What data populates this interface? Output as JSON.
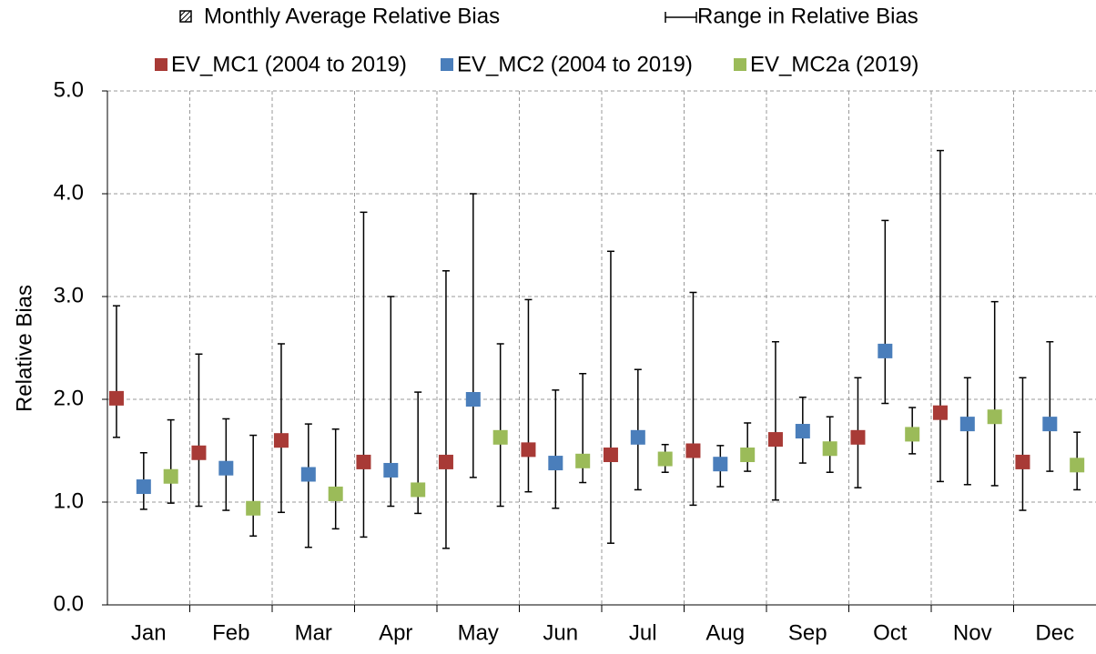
{
  "chart_data": {
    "type": "range_scatter",
    "y_label": "Relative Bias",
    "legend_notes": [
      "Monthly Average Relative Bias",
      "Range in Relative Bias"
    ],
    "categories": [
      "Jan",
      "Feb",
      "Mar",
      "Apr",
      "May",
      "Jun",
      "Jul",
      "Aug",
      "Sep",
      "Oct",
      "Nov",
      "Dec"
    ],
    "ylim": [
      0,
      5
    ],
    "yticks": [
      {
        "value": 0,
        "label": "0.0"
      },
      {
        "value": 1,
        "label": "1.0"
      },
      {
        "value": 2,
        "label": "2.0"
      },
      {
        "value": 3,
        "label": "3.0"
      },
      {
        "value": 4,
        "label": "4.0"
      },
      {
        "value": 5,
        "label": "5.0"
      }
    ],
    "grid": true,
    "series": [
      {
        "name": "EV_MC1 (2004 to 2019)",
        "color": "#a83a36",
        "values": [
          2.01,
          1.48,
          1.6,
          1.39,
          1.39,
          1.51,
          1.46,
          1.5,
          1.61,
          1.63,
          1.87,
          1.39
        ],
        "low": [
          1.63,
          0.96,
          0.9,
          0.66,
          0.55,
          1.1,
          0.6,
          0.97,
          1.02,
          1.14,
          1.2,
          0.92
        ],
        "high": [
          2.91,
          2.44,
          2.54,
          3.82,
          3.25,
          2.97,
          3.44,
          3.04,
          2.56,
          2.21,
          4.42,
          2.21
        ]
      },
      {
        "name": "EV_MC2 (2004 to 2019)",
        "color": "#4a7ebb",
        "values": [
          1.15,
          1.33,
          1.27,
          1.31,
          2.0,
          1.38,
          1.63,
          1.37,
          1.69,
          2.47,
          1.76,
          1.76
        ],
        "low": [
          0.93,
          0.92,
          0.56,
          0.96,
          1.24,
          0.94,
          1.12,
          1.15,
          1.38,
          1.96,
          1.17,
          1.3
        ],
        "high": [
          1.48,
          1.81,
          1.76,
          3.0,
          4.0,
          2.09,
          2.29,
          1.55,
          2.02,
          3.74,
          2.21,
          2.56
        ]
      },
      {
        "name": "EV_MC2a (2019)",
        "color": "#9bbb59",
        "values": [
          1.25,
          0.94,
          1.08,
          1.12,
          1.63,
          1.4,
          1.42,
          1.46,
          1.52,
          1.66,
          1.83,
          1.36
        ],
        "low": [
          0.99,
          0.67,
          0.74,
          0.89,
          0.96,
          1.19,
          1.29,
          1.3,
          1.29,
          1.47,
          1.16,
          1.12
        ],
        "high": [
          1.8,
          1.65,
          1.71,
          2.07,
          2.54,
          2.25,
          1.56,
          1.77,
          1.83,
          1.92,
          2.95,
          1.68
        ]
      }
    ]
  }
}
